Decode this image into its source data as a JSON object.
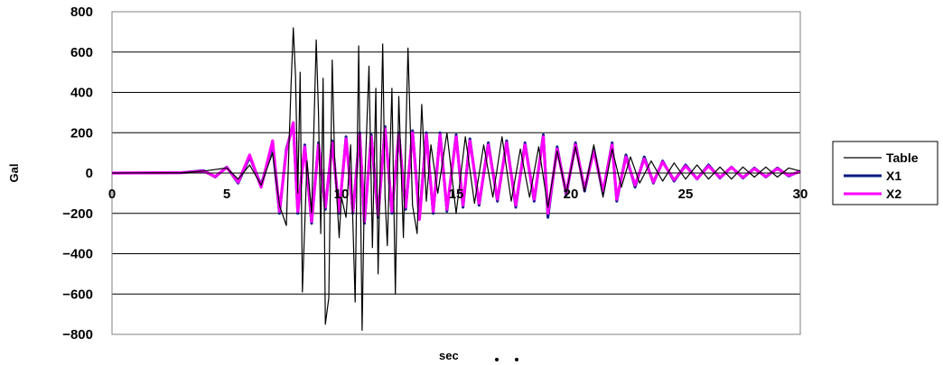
{
  "chart_data": {
    "type": "line",
    "title": "",
    "xlabel": "sec",
    "ylabel": "Gal",
    "xlim": [
      0,
      30
    ],
    "ylim": [
      -800,
      800
    ],
    "x_ticks": [
      0,
      5,
      10,
      15,
      20,
      25,
      30
    ],
    "y_ticks": [
      800,
      600,
      400,
      200,
      0,
      -200,
      -400,
      -600,
      -800
    ],
    "grid": "horizontal",
    "legend": "right",
    "series": [
      {
        "name": "Table",
        "color": "#000000",
        "points": [
          [
            0,
            0
          ],
          [
            3,
            2
          ],
          [
            4,
            10
          ],
          [
            5,
            25
          ],
          [
            5.5,
            -30
          ],
          [
            6,
            40
          ],
          [
            6.5,
            -60
          ],
          [
            7,
            100
          ],
          [
            7.3,
            -160
          ],
          [
            7.6,
            -260
          ],
          [
            7.8,
            420
          ],
          [
            7.9,
            720
          ],
          [
            8.0,
            480
          ],
          [
            8.1,
            -100
          ],
          [
            8.2,
            500
          ],
          [
            8.3,
            -590
          ],
          [
            8.5,
            60
          ],
          [
            8.7,
            -200
          ],
          [
            8.9,
            660
          ],
          [
            9.0,
            300
          ],
          [
            9.1,
            -300
          ],
          [
            9.2,
            470
          ],
          [
            9.3,
            -750
          ],
          [
            9.45,
            -620
          ],
          [
            9.6,
            560
          ],
          [
            9.7,
            80
          ],
          [
            9.9,
            -320
          ],
          [
            10.0,
            -120
          ],
          [
            10.2,
            -220
          ],
          [
            10.4,
            140
          ],
          [
            10.6,
            -640
          ],
          [
            10.75,
            630
          ],
          [
            10.9,
            -780
          ],
          [
            11.0,
            -100
          ],
          [
            11.2,
            530
          ],
          [
            11.35,
            -370
          ],
          [
            11.5,
            420
          ],
          [
            11.6,
            -500
          ],
          [
            11.8,
            640
          ],
          [
            11.9,
            -120
          ],
          [
            12.0,
            -360
          ],
          [
            12.2,
            420
          ],
          [
            12.35,
            -600
          ],
          [
            12.5,
            380
          ],
          [
            12.7,
            -320
          ],
          [
            12.9,
            620
          ],
          [
            13.1,
            -160
          ],
          [
            13.3,
            -300
          ],
          [
            13.5,
            340
          ],
          [
            13.7,
            -140
          ],
          [
            13.9,
            140
          ],
          [
            14.2,
            -100
          ],
          [
            14.6,
            200
          ],
          [
            15.0,
            -200
          ],
          [
            15.4,
            180
          ],
          [
            15.8,
            -150
          ],
          [
            16.2,
            140
          ],
          [
            16.6,
            -120
          ],
          [
            17.0,
            180
          ],
          [
            17.4,
            -140
          ],
          [
            17.8,
            120
          ],
          [
            18.2,
            -120
          ],
          [
            18.6,
            130
          ],
          [
            19.0,
            -170
          ],
          [
            19.4,
            110
          ],
          [
            19.8,
            -100
          ],
          [
            20.2,
            130
          ],
          [
            20.6,
            -90
          ],
          [
            21.0,
            140
          ],
          [
            21.4,
            -120
          ],
          [
            21.8,
            120
          ],
          [
            22.2,
            -70
          ],
          [
            22.6,
            80
          ],
          [
            23.0,
            -50
          ],
          [
            23.5,
            60
          ],
          [
            24.0,
            -40
          ],
          [
            24.5,
            50
          ],
          [
            25.0,
            -30
          ],
          [
            25.5,
            40
          ],
          [
            26.0,
            -30
          ],
          [
            26.5,
            30
          ],
          [
            27.0,
            -30
          ],
          [
            27.5,
            30
          ],
          [
            28.0,
            -20
          ],
          [
            28.5,
            30
          ],
          [
            29.0,
            -20
          ],
          [
            29.5,
            25
          ],
          [
            30.0,
            10
          ]
        ]
      },
      {
        "name": "X1",
        "color": "#001a80",
        "points": [
          [
            0,
            0
          ],
          [
            3,
            2
          ],
          [
            4,
            12
          ],
          [
            4.5,
            -20
          ],
          [
            5,
            30
          ],
          [
            5.5,
            -50
          ],
          [
            6,
            80
          ],
          [
            6.5,
            -60
          ],
          [
            7,
            140
          ],
          [
            7.3,
            -200
          ],
          [
            7.6,
            120
          ],
          [
            7.9,
            240
          ],
          [
            8.1,
            -200
          ],
          [
            8.4,
            140
          ],
          [
            8.7,
            -250
          ],
          [
            9.0,
            150
          ],
          [
            9.3,
            -180
          ],
          [
            9.6,
            160
          ],
          [
            9.9,
            -200
          ],
          [
            10.2,
            180
          ],
          [
            10.5,
            -200
          ],
          [
            10.8,
            200
          ],
          [
            11.0,
            -250
          ],
          [
            11.3,
            190
          ],
          [
            11.6,
            -220
          ],
          [
            11.9,
            230
          ],
          [
            12.2,
            -200
          ],
          [
            12.5,
            200
          ],
          [
            12.8,
            -180
          ],
          [
            13.1,
            210
          ],
          [
            13.4,
            -220
          ],
          [
            13.7,
            200
          ],
          [
            14.0,
            -200
          ],
          [
            14.3,
            200
          ],
          [
            14.6,
            -190
          ],
          [
            15.0,
            190
          ],
          [
            15.3,
            -170
          ],
          [
            15.6,
            170
          ],
          [
            16.0,
            -160
          ],
          [
            16.4,
            150
          ],
          [
            16.8,
            -140
          ],
          [
            17.2,
            160
          ],
          [
            17.6,
            -170
          ],
          [
            18.0,
            150
          ],
          [
            18.4,
            -140
          ],
          [
            18.8,
            190
          ],
          [
            19.0,
            -220
          ],
          [
            19.4,
            130
          ],
          [
            19.8,
            -110
          ],
          [
            20.2,
            150
          ],
          [
            20.6,
            -90
          ],
          [
            21.0,
            120
          ],
          [
            21.4,
            -100
          ],
          [
            21.8,
            150
          ],
          [
            22.0,
            -140
          ],
          [
            22.4,
            90
          ],
          [
            22.8,
            -70
          ],
          [
            23.2,
            80
          ],
          [
            23.6,
            -50
          ],
          [
            24.0,
            60
          ],
          [
            24.5,
            -40
          ],
          [
            25.0,
            40
          ],
          [
            25.5,
            -30
          ],
          [
            26.0,
            40
          ],
          [
            26.5,
            -25
          ],
          [
            27.0,
            30
          ],
          [
            27.5,
            -25
          ],
          [
            28.0,
            25
          ],
          [
            28.5,
            -20
          ],
          [
            29.0,
            25
          ],
          [
            29.5,
            -15
          ],
          [
            30.0,
            10
          ]
        ]
      },
      {
        "name": "X2",
        "color": "#ff00ff",
        "points": [
          [
            0,
            0
          ],
          [
            3,
            2
          ],
          [
            4,
            10
          ],
          [
            4.5,
            -18
          ],
          [
            5,
            28
          ],
          [
            5.5,
            -45
          ],
          [
            6,
            90
          ],
          [
            6.5,
            -70
          ],
          [
            7,
            160
          ],
          [
            7.3,
            -190
          ],
          [
            7.6,
            110
          ],
          [
            7.9,
            250
          ],
          [
            8.1,
            -190
          ],
          [
            8.4,
            130
          ],
          [
            8.7,
            -240
          ],
          [
            9.0,
            140
          ],
          [
            9.3,
            -170
          ],
          [
            9.6,
            150
          ],
          [
            9.9,
            -190
          ],
          [
            10.2,
            170
          ],
          [
            10.5,
            -190
          ],
          [
            10.8,
            190
          ],
          [
            11.0,
            -240
          ],
          [
            11.3,
            180
          ],
          [
            11.6,
            -210
          ],
          [
            11.9,
            220
          ],
          [
            12.2,
            -190
          ],
          [
            12.5,
            190
          ],
          [
            12.8,
            -170
          ],
          [
            13.1,
            200
          ],
          [
            13.4,
            -230
          ],
          [
            13.7,
            190
          ],
          [
            14.0,
            -190
          ],
          [
            14.3,
            190
          ],
          [
            14.6,
            -180
          ],
          [
            15.0,
            180
          ],
          [
            15.3,
            -160
          ],
          [
            15.6,
            160
          ],
          [
            16.0,
            -150
          ],
          [
            16.4,
            140
          ],
          [
            16.8,
            -130
          ],
          [
            17.2,
            150
          ],
          [
            17.6,
            -160
          ],
          [
            18.0,
            140
          ],
          [
            18.4,
            -130
          ],
          [
            18.8,
            180
          ],
          [
            19.0,
            -200
          ],
          [
            19.4,
            120
          ],
          [
            19.8,
            -100
          ],
          [
            20.2,
            140
          ],
          [
            20.6,
            -80
          ],
          [
            21.0,
            110
          ],
          [
            21.4,
            -90
          ],
          [
            21.8,
            140
          ],
          [
            22.0,
            -130
          ],
          [
            22.4,
            80
          ],
          [
            22.8,
            -60
          ],
          [
            23.2,
            70
          ],
          [
            23.6,
            -45
          ],
          [
            24.0,
            55
          ],
          [
            24.5,
            -35
          ],
          [
            25.0,
            35
          ],
          [
            25.5,
            -28
          ],
          [
            26.0,
            35
          ],
          [
            26.5,
            -22
          ],
          [
            27.0,
            28
          ],
          [
            27.5,
            -22
          ],
          [
            28.0,
            22
          ],
          [
            28.5,
            -18
          ],
          [
            29.0,
            22
          ],
          [
            29.5,
            -12
          ],
          [
            30.0,
            8
          ]
        ]
      }
    ]
  }
}
